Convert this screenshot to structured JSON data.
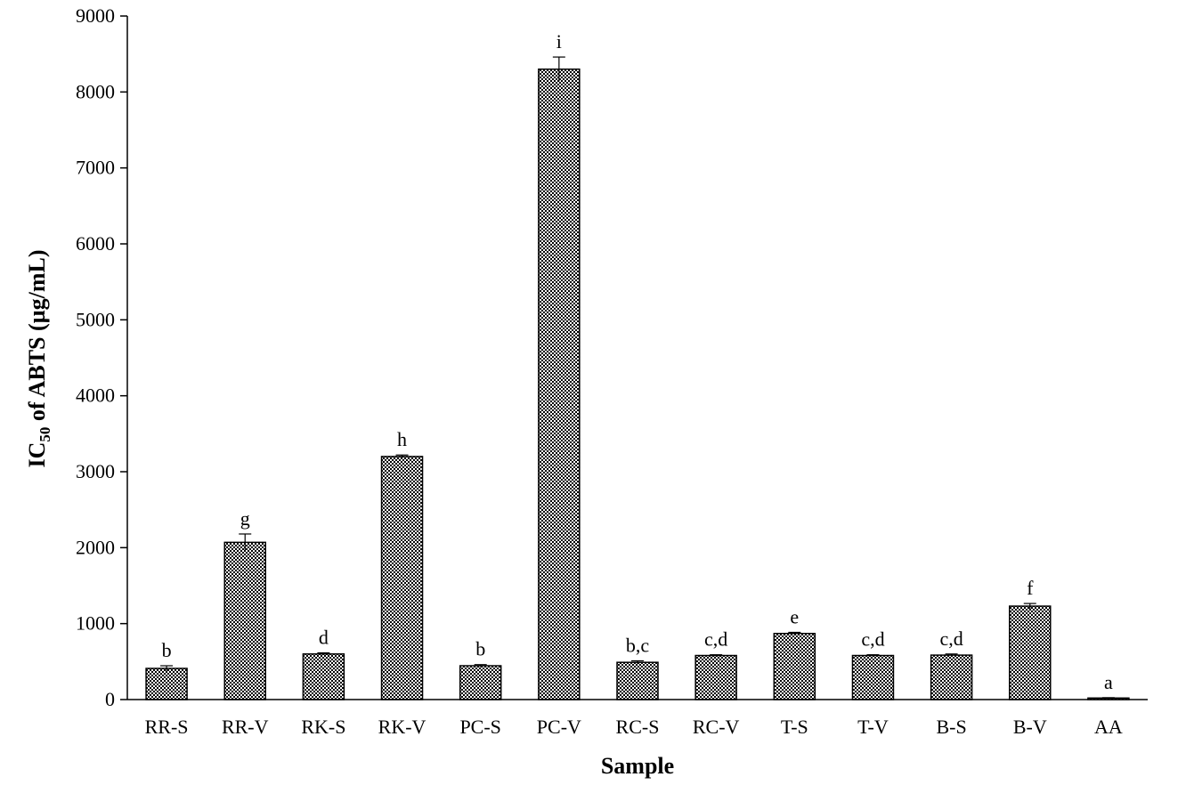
{
  "chart_data": {
    "type": "bar",
    "categories": [
      "RR-S",
      "RR-V",
      "RK-S",
      "RK-V",
      "PC-S",
      "PC-V",
      "RC-S",
      "RC-V",
      "T-S",
      "T-V",
      "B-S",
      "B-V",
      "AA"
    ],
    "values": [
      410,
      2070,
      600,
      3200,
      445,
      8300,
      490,
      580,
      870,
      580,
      585,
      1230,
      20
    ],
    "errors": [
      35,
      110,
      15,
      20,
      15,
      160,
      20,
      10,
      15,
      10,
      15,
      35,
      5
    ],
    "significance": [
      "b",
      "g",
      "d",
      "h",
      "b",
      "i",
      "b,c",
      "c,d",
      "e",
      "c,d",
      "c,d",
      "f",
      "a"
    ],
    "ylabel_main": "IC",
    "ylabel_sub": "50",
    "ylabel_rest": " of ABTS (µg/mL)",
    "xlabel": "Sample",
    "ylim": [
      0,
      9000
    ],
    "yticks": [
      0,
      1000,
      2000,
      3000,
      4000,
      5000,
      6000,
      7000,
      8000,
      9000
    ],
    "grid": false,
    "bar_pattern": "checkered",
    "colors": {
      "bar_fill": "#ffffff",
      "bar_pattern": "#000000",
      "axis": "#000000"
    }
  }
}
